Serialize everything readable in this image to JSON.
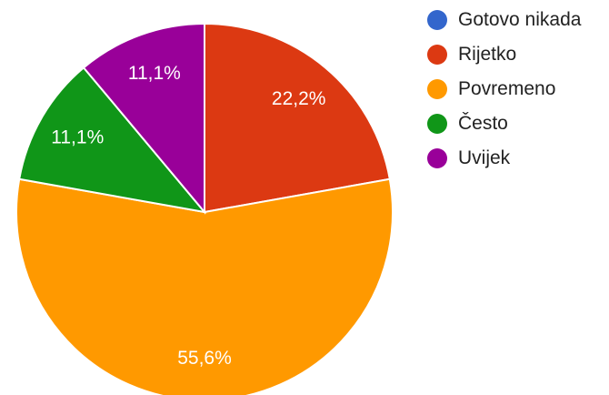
{
  "chart_data": {
    "type": "pie",
    "categories": [
      "Gotovo nikada",
      "Rijetko",
      "Povremeno",
      "Često",
      "Uvijek"
    ],
    "values": [
      0,
      22.2,
      55.6,
      11.1,
      11.1
    ],
    "labels": [
      "",
      "22,2%",
      "55,6%",
      "11,1%",
      "11,1%"
    ],
    "colors": [
      "#3366cc",
      "#dc3912",
      "#ff9900",
      "#109618",
      "#990099"
    ],
    "legend_position": "right"
  }
}
